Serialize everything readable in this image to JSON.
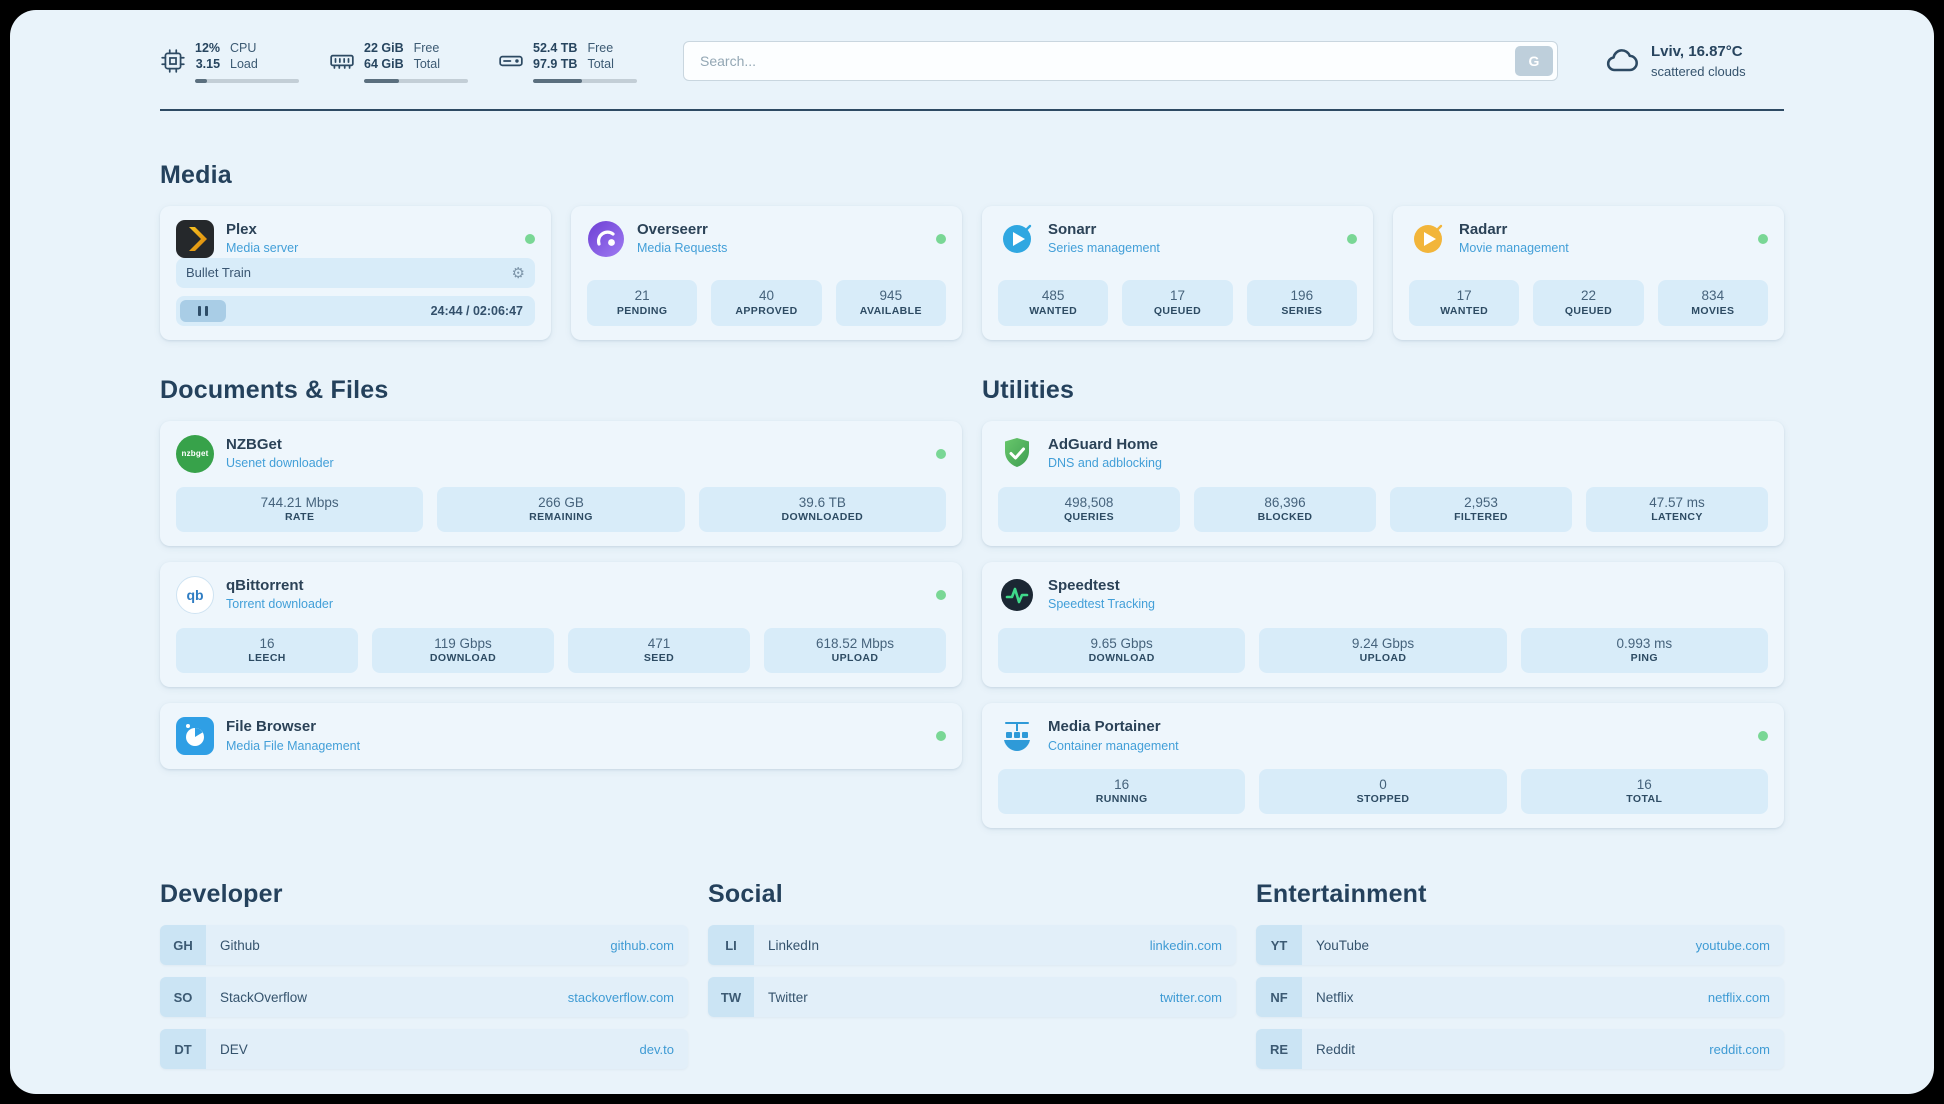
{
  "topbar": {
    "cpu": {
      "value": "12%",
      "load": "3.15",
      "label_top": "CPU",
      "label_bottom": "Load",
      "percent": 12
    },
    "memory": {
      "free": "22 GiB",
      "total": "64 GiB",
      "label_top": "Free",
      "label_bottom": "Total",
      "percent": 34
    },
    "storage": {
      "free": "52.4 TB",
      "total": "97.9 TB",
      "label_top": "Free",
      "label_bottom": "Total",
      "percent": 47
    },
    "search": {
      "placeholder": "Search...",
      "button_label": "G"
    },
    "weather": {
      "location": "Lviv, 16.87°C",
      "condition": "scattered clouds"
    }
  },
  "icons": {
    "gear": "⚙",
    "nzbget_text": "nzbget",
    "qb_text": "qb"
  },
  "media": {
    "title": "Media",
    "plex": {
      "name": "Plex",
      "subtitle": "Media server",
      "online": true,
      "now_playing": {
        "title": "Bullet Train",
        "time": "24:44 / 02:06:47"
      }
    },
    "overseerr": {
      "name": "Overseerr",
      "subtitle": "Media Requests",
      "online": true,
      "stats": [
        {
          "value": "21",
          "label": "PENDING"
        },
        {
          "value": "40",
          "label": "APPROVED"
        },
        {
          "value": "945",
          "label": "AVAILABLE"
        }
      ]
    },
    "sonarr": {
      "name": "Sonarr",
      "subtitle": "Series management",
      "online": true,
      "stats": [
        {
          "value": "485",
          "label": "WANTED"
        },
        {
          "value": "17",
          "label": "QUEUED"
        },
        {
          "value": "196",
          "label": "SERIES"
        }
      ]
    },
    "radarr": {
      "name": "Radarr",
      "subtitle": "Movie management",
      "online": true,
      "stats": [
        {
          "value": "17",
          "label": "WANTED"
        },
        {
          "value": "22",
          "label": "QUEUED"
        },
        {
          "value": "834",
          "label": "MOVIES"
        }
      ]
    }
  },
  "documents": {
    "title": "Documents & Files",
    "nzbget": {
      "name": "NZBGet",
      "subtitle": "Usenet downloader",
      "online": true,
      "stats": [
        {
          "value": "744.21 Mbps",
          "label": "RATE"
        },
        {
          "value": "266 GB",
          "label": "REMAINING"
        },
        {
          "value": "39.6 TB",
          "label": "DOWNLOADED"
        }
      ]
    },
    "qbittorrent": {
      "name": "qBittorrent",
      "subtitle": "Torrent downloader",
      "online": true,
      "stats": [
        {
          "value": "16",
          "label": "LEECH"
        },
        {
          "value": "119 Gbps",
          "label": "DOWNLOAD"
        },
        {
          "value": "471",
          "label": "SEED"
        },
        {
          "value": "618.52 Mbps",
          "label": "UPLOAD"
        }
      ]
    },
    "filebrowser": {
      "name": "File Browser",
      "subtitle": "Media File Management",
      "online": true
    }
  },
  "utilities": {
    "title": "Utilities",
    "adguard": {
      "name": "AdGuard Home",
      "subtitle": "DNS and adblocking",
      "online": false,
      "stats": [
        {
          "value": "498,508",
          "label": "QUERIES"
        },
        {
          "value": "86,396",
          "label": "BLOCKED"
        },
        {
          "value": "2,953",
          "label": "FILTERED"
        },
        {
          "value": "47.57 ms",
          "label": "LATENCY"
        }
      ]
    },
    "speedtest": {
      "name": "Speedtest",
      "subtitle": "Speedtest Tracking",
      "online": false,
      "stats": [
        {
          "value": "9.65 Gbps",
          "label": "DOWNLOAD"
        },
        {
          "value": "9.24 Gbps",
          "label": "UPLOAD"
        },
        {
          "value": "0.993 ms",
          "label": "PING"
        }
      ]
    },
    "portainer": {
      "name": "Media Portainer",
      "subtitle": "Container management",
      "online": true,
      "stats": [
        {
          "value": "16",
          "label": "RUNNING"
        },
        {
          "value": "0",
          "label": "STOPPED"
        },
        {
          "value": "16",
          "label": "TOTAL"
        }
      ]
    }
  },
  "bookmarks": {
    "developer": {
      "title": "Developer",
      "items": [
        {
          "abbr": "GH",
          "name": "Github",
          "url": "github.com"
        },
        {
          "abbr": "SO",
          "name": "StackOverflow",
          "url": "stackoverflow.com"
        },
        {
          "abbr": "DT",
          "name": "DEV",
          "url": "dev.to"
        }
      ]
    },
    "social": {
      "title": "Social",
      "items": [
        {
          "abbr": "LI",
          "name": "LinkedIn",
          "url": "linkedin.com"
        },
        {
          "abbr": "TW",
          "name": "Twitter",
          "url": "twitter.com"
        }
      ]
    },
    "entertainment": {
      "title": "Entertainment",
      "items": [
        {
          "abbr": "YT",
          "name": "YouTube",
          "url": "youtube.com"
        },
        {
          "abbr": "NF",
          "name": "Netflix",
          "url": "netflix.com"
        },
        {
          "abbr": "RE",
          "name": "Reddit",
          "url": "reddit.com"
        }
      ]
    }
  },
  "colors": {
    "page_background": "#e9f3fa",
    "card_background": "#eef6fc",
    "chip_background": "#d8ecf9",
    "accent_blue": "#429fd8",
    "heading_text": "#24415c",
    "status_online_green": "#79d795",
    "plex_brand_yellow": "#e5a00d",
    "adguard_green": "#57b657",
    "speedtest_green": "#3fd98a"
  }
}
